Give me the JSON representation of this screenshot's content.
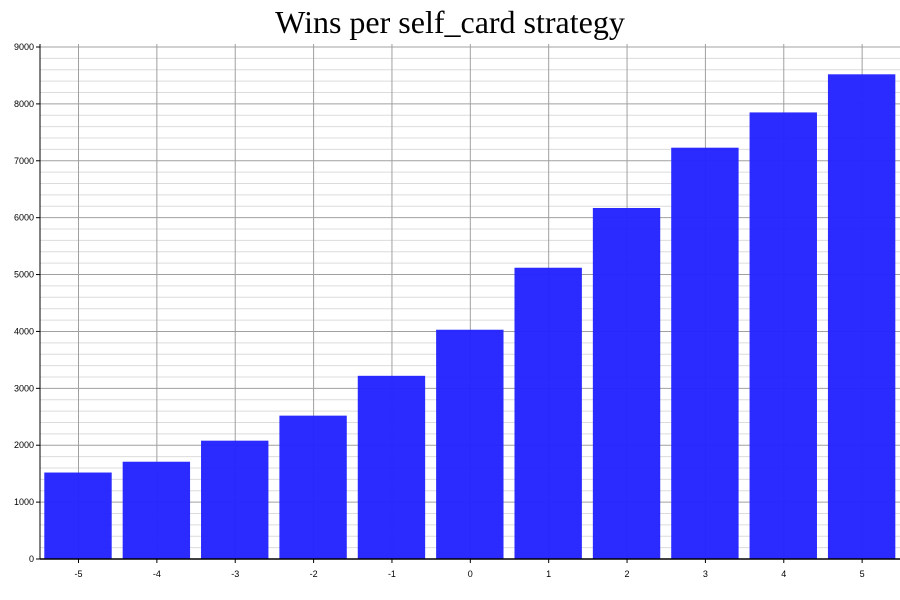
{
  "chart_data": {
    "type": "bar",
    "title": "Wins per self_card strategy",
    "xlabel": "",
    "ylabel": "",
    "categories": [
      "-5",
      "-4",
      "-3",
      "-2",
      "-1",
      "0",
      "1",
      "2",
      "3",
      "4",
      "5"
    ],
    "values": [
      1520,
      1710,
      2080,
      2520,
      3220,
      4030,
      5120,
      6170,
      7230,
      7850,
      8520
    ],
    "ylim": [
      0,
      9000
    ],
    "yticks": [
      0,
      1000,
      2000,
      3000,
      4000,
      5000,
      6000,
      7000,
      8000,
      9000
    ],
    "grid": true,
    "bar_color": "#2424ff",
    "legend": "none"
  }
}
